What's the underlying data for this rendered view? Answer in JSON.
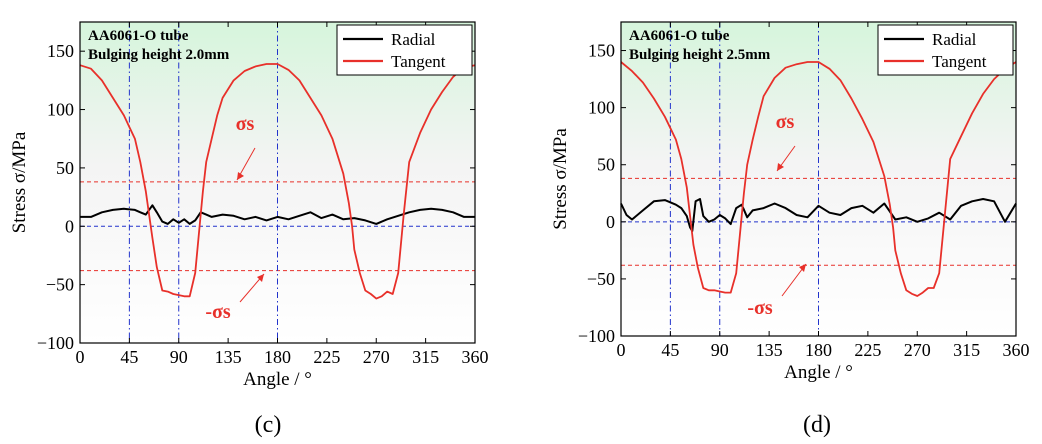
{
  "chart_data": [
    {
      "type": "line",
      "panel_label": "(c)",
      "title_line1": "AA6061-O tube",
      "title_line2": "Bulging height 2.0mm",
      "xlabel": "Angle / °",
      "ylabel": "Stress σ/MPa",
      "xlim": [
        0,
        360
      ],
      "ylim": [
        -100,
        175
      ],
      "xticks": [
        0,
        45,
        90,
        135,
        180,
        225,
        270,
        315,
        360
      ],
      "yticks": [
        -100,
        -50,
        0,
        50,
        100,
        150
      ],
      "ytick_labels": [
        "−100",
        "−50",
        "0",
        "50",
        "100",
        "150"
      ],
      "legend_location": "top-right",
      "yield_stress": 38,
      "annotation_pos": "σs",
      "annotation_neg": "-σs",
      "vertical_refs": [
        45,
        90,
        180
      ],
      "series": [
        {
          "name": "Radial",
          "color": "#000000",
          "x": [
            0,
            10,
            20,
            30,
            40,
            50,
            55,
            60,
            63,
            66,
            70,
            75,
            80,
            85,
            90,
            95,
            100,
            105,
            110,
            115,
            120,
            130,
            140,
            150,
            160,
            170,
            180,
            190,
            200,
            210,
            220,
            230,
            240,
            250,
            260,
            270,
            280,
            290,
            300,
            310,
            320,
            330,
            340,
            350,
            360
          ],
          "y": [
            8,
            8,
            12,
            14,
            15,
            14,
            12,
            10,
            14,
            18,
            12,
            4,
            2,
            6,
            3,
            6,
            2,
            5,
            12,
            10,
            8,
            10,
            9,
            6,
            8,
            5,
            8,
            6,
            9,
            12,
            7,
            10,
            6,
            7,
            5,
            2,
            6,
            9,
            12,
            14,
            15,
            14,
            12,
            8,
            8
          ]
        },
        {
          "name": "Tangent",
          "color": "#e8302a",
          "x": [
            0,
            10,
            20,
            30,
            40,
            45,
            50,
            55,
            60,
            63,
            66,
            70,
            75,
            80,
            85,
            90,
            95,
            100,
            105,
            110,
            112,
            115,
            120,
            125,
            130,
            140,
            150,
            160,
            170,
            180,
            190,
            200,
            210,
            220,
            230,
            240,
            245,
            248,
            250,
            255,
            260,
            265,
            270,
            275,
            280,
            285,
            290,
            295,
            300,
            310,
            320,
            330,
            340,
            350,
            360
          ],
          "y": [
            138,
            135,
            125,
            110,
            95,
            85,
            75,
            55,
            30,
            10,
            -10,
            -35,
            -55,
            -56,
            -58,
            -59,
            -60,
            -60,
            -40,
            10,
            30,
            55,
            75,
            95,
            110,
            125,
            133,
            137,
            139,
            139,
            134,
            125,
            110,
            95,
            75,
            45,
            20,
            0,
            -20,
            -40,
            -55,
            -58,
            -62,
            -60,
            -56,
            -58,
            -40,
            10,
            55,
            80,
            100,
            115,
            128,
            136,
            138
          ]
        }
      ]
    },
    {
      "type": "line",
      "panel_label": "(d)",
      "title_line1": "AA6061-O tube",
      "title_line2": "Bulging height 2.5mm",
      "xlabel": "Angle / °",
      "ylabel": "Stress σ/MPa",
      "xlim": [
        0,
        360
      ],
      "ylim": [
        -100,
        175
      ],
      "xticks": [
        0,
        45,
        90,
        135,
        180,
        225,
        270,
        315,
        360
      ],
      "yticks": [
        -100,
        -50,
        0,
        50,
        100,
        150
      ],
      "ytick_labels": [
        "−100",
        "−50",
        "0",
        "50",
        "100",
        "150"
      ],
      "legend_location": "top-right",
      "yield_stress": 38,
      "annotation_pos": "σs",
      "annotation_neg": "-σs",
      "vertical_refs": [
        45,
        90,
        180
      ],
      "series": [
        {
          "name": "Radial",
          "color": "#000000",
          "x": [
            0,
            5,
            10,
            20,
            30,
            40,
            50,
            55,
            60,
            63,
            65,
            68,
            72,
            75,
            80,
            85,
            90,
            95,
            100,
            105,
            110,
            115,
            120,
            130,
            140,
            150,
            160,
            170,
            180,
            190,
            200,
            210,
            220,
            230,
            240,
            250,
            260,
            270,
            280,
            290,
            300,
            310,
            320,
            330,
            340,
            350,
            360
          ],
          "y": [
            16,
            6,
            2,
            10,
            18,
            19,
            15,
            12,
            5,
            -5,
            -8,
            18,
            20,
            5,
            0,
            2,
            6,
            3,
            -2,
            12,
            15,
            4,
            10,
            12,
            16,
            12,
            6,
            4,
            14,
            8,
            6,
            12,
            14,
            8,
            16,
            2,
            4,
            0,
            3,
            8,
            2,
            14,
            18,
            20,
            18,
            0,
            16
          ]
        },
        {
          "name": "Tangent",
          "color": "#e8302a",
          "x": [
            0,
            10,
            20,
            30,
            40,
            45,
            50,
            55,
            60,
            63,
            66,
            70,
            75,
            80,
            85,
            90,
            95,
            100,
            105,
            110,
            112,
            115,
            120,
            125,
            130,
            140,
            150,
            160,
            170,
            180,
            190,
            200,
            210,
            220,
            230,
            240,
            245,
            248,
            250,
            255,
            260,
            265,
            270,
            275,
            280,
            285,
            290,
            295,
            300,
            310,
            320,
            330,
            340,
            350,
            360
          ],
          "y": [
            140,
            132,
            122,
            108,
            92,
            82,
            72,
            55,
            30,
            5,
            -20,
            -40,
            -58,
            -60,
            -60,
            -61,
            -62,
            -62,
            -45,
            5,
            25,
            50,
            72,
            92,
            110,
            126,
            135,
            138,
            140,
            140,
            134,
            124,
            108,
            90,
            70,
            40,
            15,
            -5,
            -25,
            -45,
            -60,
            -63,
            -65,
            -62,
            -58,
            -58,
            -45,
            5,
            55,
            75,
            95,
            112,
            125,
            134,
            140
          ]
        }
      ]
    }
  ]
}
